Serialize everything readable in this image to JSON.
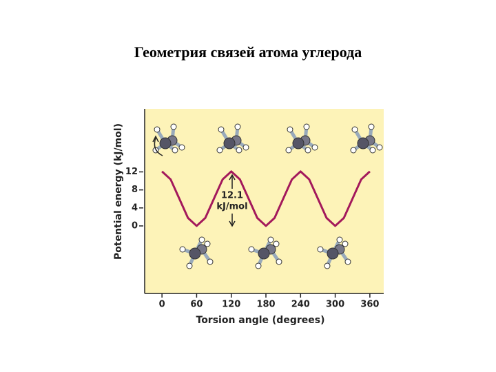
{
  "chart_data": {
    "type": "line",
    "title": "Геометрия связей атома углерода",
    "x_label": "Torsion angle (degrees)",
    "y_label": "Potential energy (kJ/mol)",
    "annotation_lines": [
      "12.1",
      "kJ/mol"
    ],
    "x": [
      0,
      15,
      30,
      45,
      60,
      75,
      90,
      105,
      120,
      135,
      150,
      165,
      180,
      195,
      210,
      225,
      240,
      255,
      270,
      285,
      300,
      315,
      330,
      345,
      360
    ],
    "values": [
      12.1,
      10.33,
      6.05,
      1.77,
      0,
      1.77,
      6.05,
      10.33,
      12.1,
      10.33,
      6.05,
      1.77,
      0,
      1.77,
      6.05,
      10.33,
      12.1,
      10.33,
      6.05,
      1.77,
      0,
      1.77,
      6.05,
      10.33,
      12.1
    ],
    "color": "#a3195b",
    "xlim": [
      -30,
      384
    ],
    "ylim": [
      -15,
      26
    ],
    "xticks": [
      0,
      60,
      120,
      180,
      240,
      300,
      360
    ],
    "yticks": [
      0,
      4,
      8,
      12
    ]
  }
}
